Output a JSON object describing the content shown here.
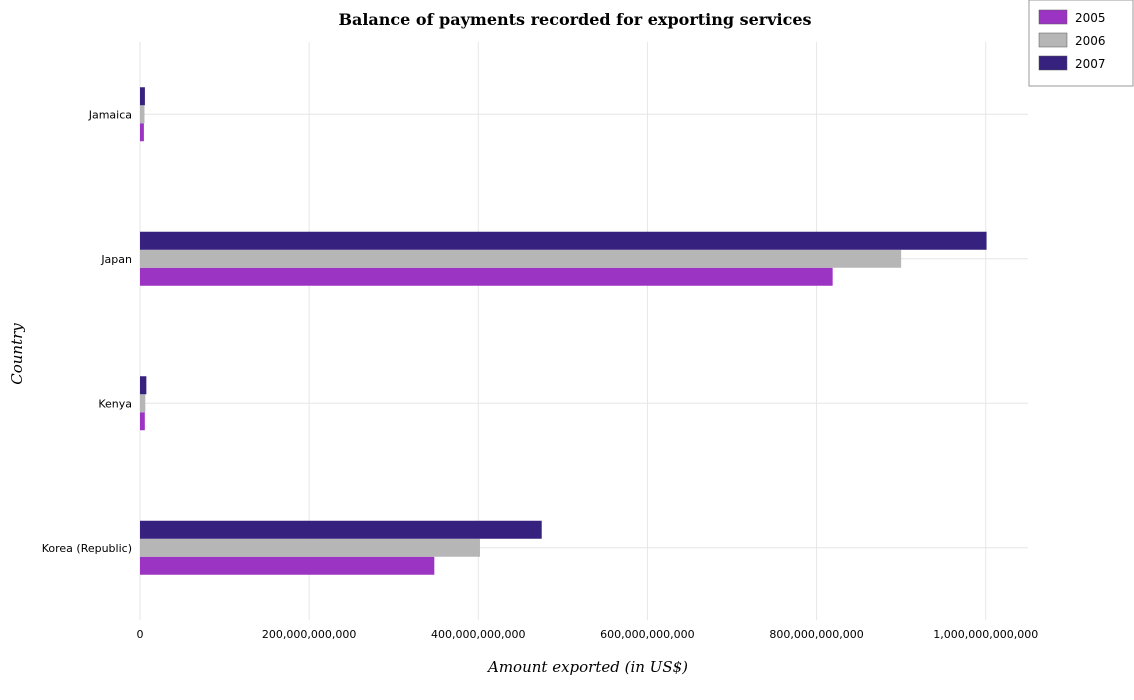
{
  "colors": {
    "2005": "#9c34c3",
    "2006": "#b6b6b6",
    "2007": "#37217f",
    "grid": "#e6e6e6"
  },
  "chart_data": {
    "type": "bar",
    "orientation": "horizontal",
    "title": "Balance of payments recorded for exporting services",
    "xlabel": "Amount exported (in US$)",
    "ylabel": "Country",
    "categories": [
      "Jamaica",
      "Japan",
      "Kenya",
      "Korea (Republic)"
    ],
    "series": [
      {
        "name": "2005",
        "values": [
          4600000000.0,
          819000000000.0,
          5700000000.0,
          348000000000.0
        ]
      },
      {
        "name": "2006",
        "values": [
          5300000000.0,
          900000000000.0,
          6300000000.0,
          402000000000.0
        ]
      },
      {
        "name": "2007",
        "values": [
          5800000000.0,
          1001000000000.0,
          7500000000.0,
          475000000000.0
        ]
      }
    ],
    "xlim": [
      0,
      1050000000000
    ],
    "xticks": [
      0,
      200000000000,
      400000000000,
      600000000000,
      800000000000,
      1000000000000
    ],
    "xtick_labels": [
      "0",
      "200,000,000,000",
      "400,000,000,000",
      "600,000,000,000",
      "800,000,000,000",
      "1,000,000,000,000"
    ],
    "grid": true,
    "legend_position": "top-right"
  }
}
